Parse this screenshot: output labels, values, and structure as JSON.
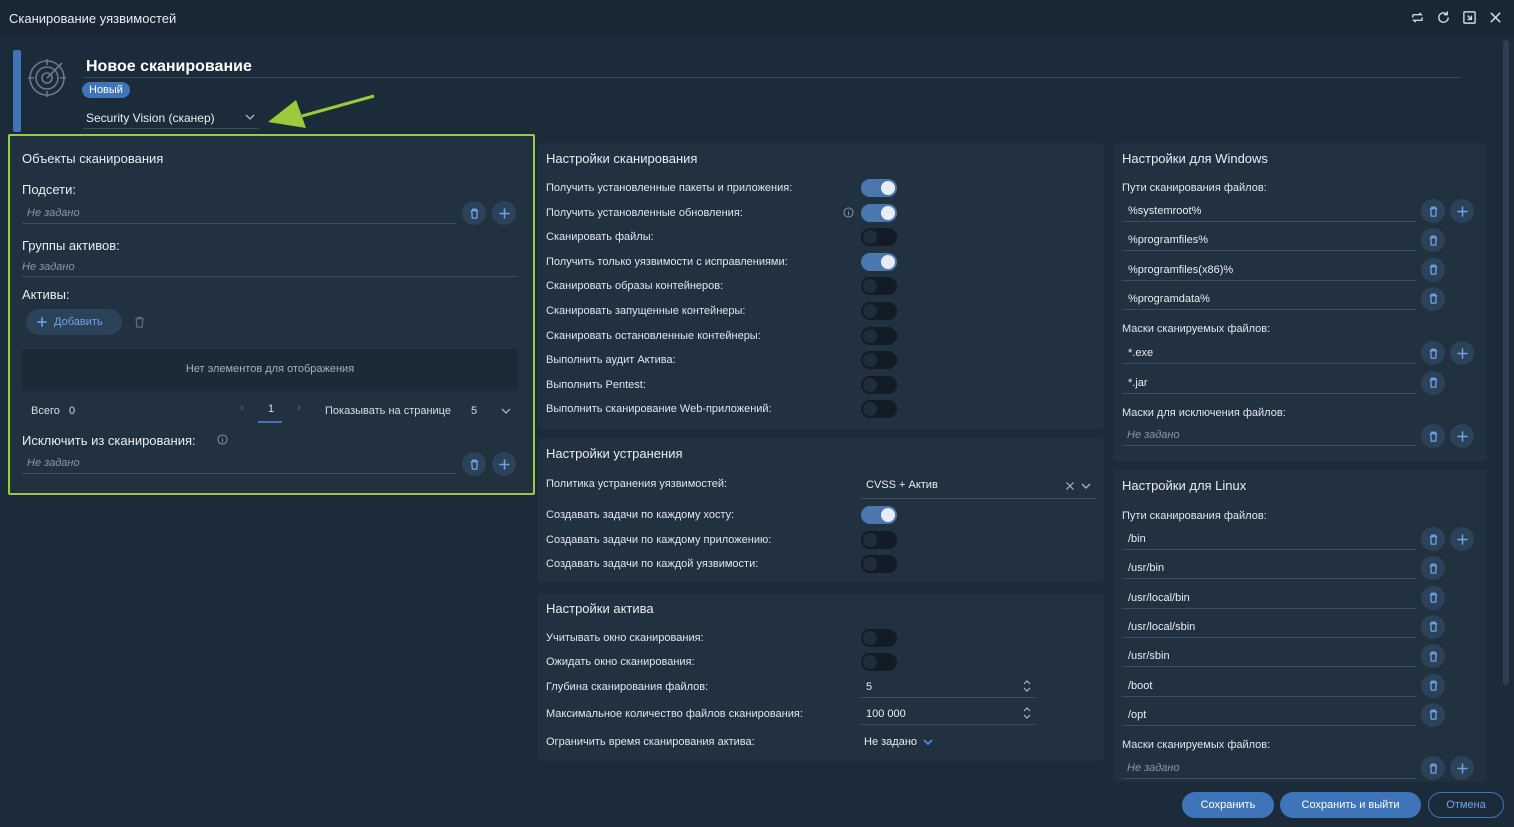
{
  "window": {
    "title": "Сканирование уязвимостей"
  },
  "header": {
    "title": "Новое сканирование",
    "status": "Новый",
    "scanner": "Security Vision (сканер)"
  },
  "objects": {
    "title": "Объекты сканирования",
    "subnets_label": "Подсети:",
    "subnets_placeholder": "Не задано",
    "asset_groups_label": "Группы активов:",
    "asset_groups_placeholder": "Не задано",
    "assets_label": "Активы:",
    "add_label": "Добавить",
    "empty_text": "Нет элементов для отображения",
    "total_label": "Всего",
    "total_value": "0",
    "page": "1",
    "per_page_label": "Показывать на странице",
    "per_page_value": "5",
    "exclude_label": "Исключить из сканирования:",
    "exclude_placeholder": "Не задано"
  },
  "scan_settings": {
    "title": "Настройки сканирования",
    "items": [
      {
        "label": "Получить установленные пакеты и приложения:",
        "on": true
      },
      {
        "label": "Получить установленные обновления:",
        "on": true
      },
      {
        "label": "Сканировать файлы:",
        "on": false
      },
      {
        "label": "Получить только уязвимости с исправлениями:",
        "on": true
      },
      {
        "label": "Сканировать образы контейнеров:",
        "on": false
      },
      {
        "label": "Сканировать запущенные контейнеры:",
        "on": false
      },
      {
        "label": "Сканировать остановленные контейнеры:",
        "on": false
      },
      {
        "label": "Выполнить аудит Актива:",
        "on": false
      },
      {
        "label": "Выполнить Pentest:",
        "on": false
      },
      {
        "label": "Выполнить сканирование Web-приложений:",
        "on": false
      }
    ]
  },
  "remediation": {
    "title": "Настройки устранения",
    "policy_label": "Политика устранения уязвимостей:",
    "policy_value": "CVSS + Актив",
    "items": [
      {
        "label": "Создавать задачи по каждому хосту:",
        "on": true
      },
      {
        "label": "Создавать задачи по каждому приложению:",
        "on": false
      },
      {
        "label": "Создавать задачи по каждой уязвимости:",
        "on": false
      }
    ]
  },
  "asset_settings": {
    "title": "Настройки актива",
    "window_label": "Учитывать окно сканирования:",
    "wait_label": "Ожидать окно сканирования:",
    "depth_label": "Глубина сканирования файлов:",
    "depth_value": "5",
    "maxfiles_label": "Максимальное количество файлов сканирования:",
    "maxfiles_value": "100 000",
    "limit_label": "Ограничить время сканирования актива:",
    "limit_value": "Не задано"
  },
  "windows": {
    "title": "Настройки для Windows",
    "paths_label": "Пути сканирования файлов:",
    "paths": [
      "%systemroot%",
      "%programfiles%",
      "%programfiles(x86)%",
      "%programdata%"
    ],
    "masks_label": "Маски сканируемых файлов:",
    "masks": [
      "*.exe",
      "*.jar"
    ],
    "exclude_label": "Маски для исключения файлов:",
    "exclude_placeholder": "Не задано"
  },
  "linux": {
    "title": "Настройки для Linux",
    "paths_label": "Пути сканирования файлов:",
    "paths": [
      "/bin",
      "/usr/bin",
      "/usr/local/bin",
      "/usr/local/sbin",
      "/usr/sbin",
      "/boot",
      "/opt"
    ],
    "masks_label": "Маски сканируемых файлов:",
    "masks_placeholder": "Не задано"
  },
  "footer": {
    "save": "Сохранить",
    "save_exit": "Сохранить и выйти",
    "cancel": "Отмена"
  },
  "colors": {
    "accent": "#3f74b8",
    "highlight": "#9bcb3c",
    "background": "#1c2b39",
    "panel": "#213140"
  }
}
